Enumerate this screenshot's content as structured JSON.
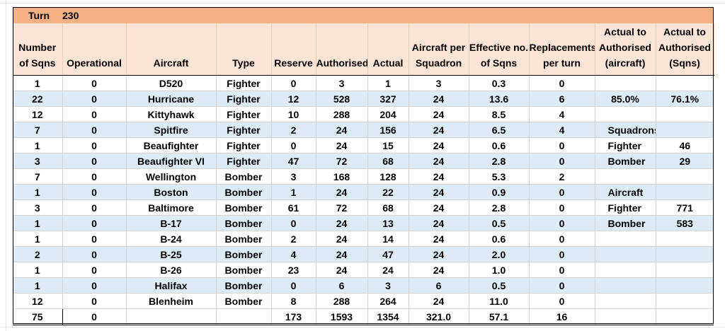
{
  "turn": {
    "label": "Turn",
    "value": "230"
  },
  "headers": [
    "Number of Sqns",
    "Operational",
    "Aircraft",
    "Type",
    "Reserve",
    "Authorised",
    "Actual",
    "Aircraft per Squadron",
    "Effective no. of Sqns",
    "Replacements per turn",
    "Actual to Authorised (aircraft)",
    "Actual to Authorised (Sqns)"
  ],
  "rows": [
    [
      "1",
      "0",
      "D520",
      "Fighter",
      "0",
      "3",
      "1",
      "3",
      "0.3",
      "0"
    ],
    [
      "22",
      "0",
      "Hurricane",
      "Fighter",
      "12",
      "528",
      "327",
      "24",
      "13.6",
      "6"
    ],
    [
      "12",
      "0",
      "Kittyhawk",
      "Fighter",
      "10",
      "288",
      "204",
      "24",
      "8.5",
      "4"
    ],
    [
      "7",
      "0",
      "Spitfire",
      "Fighter",
      "2",
      "24",
      "156",
      "24",
      "6.5",
      "4"
    ],
    [
      "1",
      "0",
      "Beaufighter",
      "Fighter",
      "0",
      "24",
      "15",
      "24",
      "0.6",
      "0"
    ],
    [
      "3",
      "0",
      "Beaufighter VI",
      "Fighter",
      "47",
      "72",
      "68",
      "24",
      "2.8",
      "0"
    ],
    [
      "7",
      "0",
      "Wellington",
      "Bomber",
      "3",
      "168",
      "128",
      "24",
      "5.3",
      "2"
    ],
    [
      "1",
      "0",
      "Boston",
      "Bomber",
      "1",
      "24",
      "22",
      "24",
      "0.9",
      "0"
    ],
    [
      "3",
      "0",
      "Baltimore",
      "Bomber",
      "61",
      "72",
      "68",
      "24",
      "2.8",
      "0"
    ],
    [
      "1",
      "0",
      "B-17",
      "Bomber",
      "0",
      "24",
      "13",
      "24",
      "0.5",
      "0"
    ],
    [
      "1",
      "0",
      "B-24",
      "Bomber",
      "2",
      "24",
      "14",
      "24",
      "0.6",
      "0"
    ],
    [
      "2",
      "0",
      "B-25",
      "Bomber",
      "4",
      "24",
      "47",
      "24",
      "2.0",
      "0"
    ],
    [
      "1",
      "0",
      "B-26",
      "Bomber",
      "23",
      "24",
      "24",
      "24",
      "1.0",
      "0"
    ],
    [
      "1",
      "0",
      "Halifax",
      "Bomber",
      "0",
      "6",
      "3",
      "6",
      "0.5",
      "0"
    ],
    [
      "12",
      "0",
      "Blenheim",
      "Bomber",
      "8",
      "288",
      "264",
      "24",
      "11.0",
      "0"
    ]
  ],
  "side": [
    [
      "",
      ""
    ],
    [
      "85.0%",
      "76.1%"
    ],
    [
      "",
      ""
    ],
    [
      "Squadrons",
      ""
    ],
    [
      "Fighter",
      "46"
    ],
    [
      "Bomber",
      "29"
    ],
    [
      "",
      ""
    ],
    [
      "Aircraft",
      ""
    ],
    [
      "Fighter",
      "771"
    ],
    [
      "Bomber",
      "583"
    ],
    [
      "",
      ""
    ],
    [
      "",
      ""
    ],
    [
      "",
      ""
    ],
    [
      "",
      ""
    ],
    [
      "",
      ""
    ]
  ],
  "totals": [
    "75",
    "0",
    "",
    "",
    "173",
    "1593",
    "1354",
    "321.0",
    "57.1",
    "16",
    "",
    ""
  ],
  "colors": {
    "turn_bar": "#f4b183",
    "header_bg": "#fce4d6",
    "band": "#ddebf7"
  }
}
